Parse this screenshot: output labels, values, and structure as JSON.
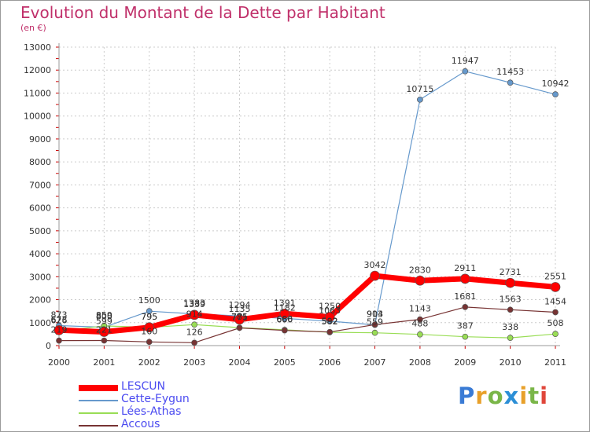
{
  "chart_data": {
    "type": "line",
    "title": "Evolution du Montant de la Dette par Habitant",
    "subtitle": "(en €)",
    "xlabel": "",
    "ylabel": "",
    "ylim": [
      0,
      13000
    ],
    "yticks": [
      0,
      1000,
      2000,
      3000,
      4000,
      5000,
      6000,
      7000,
      8000,
      9000,
      10000,
      11000,
      12000,
      13000
    ],
    "grid": true,
    "legend_position": "bottom-left",
    "x": [
      "2000",
      "2001",
      "2002",
      "2003",
      "2004",
      "2005",
      "2006",
      "2007",
      "2008",
      "2009",
      "2010",
      "2011"
    ],
    "series": [
      {
        "name": "LESCUN",
        "color": "#ff0000",
        "values": [
          673,
          599,
          795,
          1339,
          1135,
          1391,
          1250,
          3042,
          2830,
          2911,
          2731,
          2551
        ]
      },
      {
        "name": "Cette-Eygun",
        "color": "#6699cc",
        "values": [
          873,
          800,
          1500,
          1383,
          1294,
          1182,
          1063,
          903,
          10715,
          11947,
          11453,
          10942
        ]
      },
      {
        "name": "Lées-Athas",
        "color": "#99dd55",
        "values": [
          626,
          859,
          795,
          914,
          785,
          686,
          582,
          559,
          488,
          387,
          338,
          508
        ]
      },
      {
        "name": "Accous",
        "color": "#773333",
        "values": [
          219,
          221,
          160,
          126,
          771,
          660,
          592,
          914,
          1143,
          1681,
          1563,
          1454
        ]
      }
    ]
  },
  "brand": {
    "letters": [
      "P",
      "r",
      "o",
      "x",
      "i",
      "t",
      "i"
    ],
    "colors": [
      "#3a7bd5",
      "#e8a02a",
      "#7ab648",
      "#2c8fd6",
      "#e8a02a",
      "#7ab648",
      "#e0463a"
    ]
  }
}
